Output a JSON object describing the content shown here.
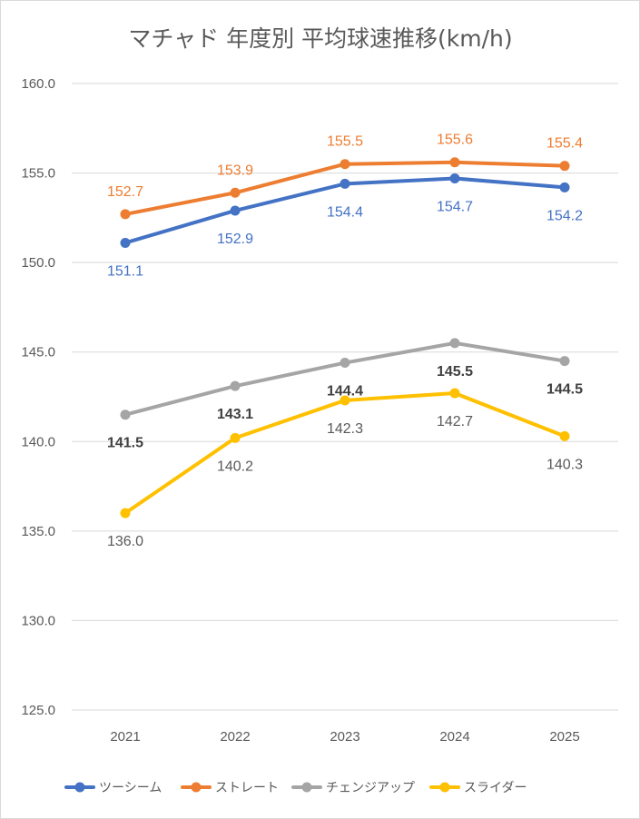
{
  "chart_data": {
    "type": "line",
    "title": "マチャド 年度別 平均球速推移(km/h)",
    "xlabel": "",
    "ylabel": "",
    "categories": [
      "2021",
      "2022",
      "2023",
      "2024",
      "2025"
    ],
    "ylim": [
      125.0,
      160.0
    ],
    "ytick_step": 5,
    "yticks": [
      "125.0",
      "130.0",
      "135.0",
      "140.0",
      "145.0",
      "150.0",
      "155.0",
      "160.0"
    ],
    "grid": true,
    "legend_position": "bottom",
    "series": [
      {
        "name": "ツーシーム",
        "color": "#4472c4",
        "values": [
          151.1,
          152.9,
          154.4,
          154.7,
          154.2
        ],
        "labels": [
          "151.1",
          "152.9",
          "154.4",
          "154.7",
          "154.2"
        ],
        "label_position": "below",
        "label_color": "#4472c4",
        "label_bold": false
      },
      {
        "name": "ストレート",
        "color": "#ed7d31",
        "values": [
          152.7,
          153.9,
          155.5,
          155.6,
          155.4
        ],
        "labels": [
          "152.7",
          "153.9",
          "155.5",
          "155.6",
          "155.4"
        ],
        "label_position": "above",
        "label_color": "#ed7d31",
        "label_bold": false
      },
      {
        "name": "チェンジアップ",
        "color": "#a5a5a5",
        "values": [
          141.5,
          143.1,
          144.4,
          145.5,
          144.5
        ],
        "labels": [
          "141.5",
          "143.1",
          "144.4",
          "145.5",
          "144.5"
        ],
        "label_position": "below",
        "label_color": "#404040",
        "label_bold": true
      },
      {
        "name": "スライダー",
        "color": "#ffc000",
        "values": [
          136.0,
          140.2,
          142.3,
          142.7,
          140.3
        ],
        "labels": [
          "136.0",
          "140.2",
          "142.3",
          "142.7",
          "140.3"
        ],
        "label_position": "below",
        "label_color": "#595959",
        "label_bold": false
      }
    ]
  }
}
